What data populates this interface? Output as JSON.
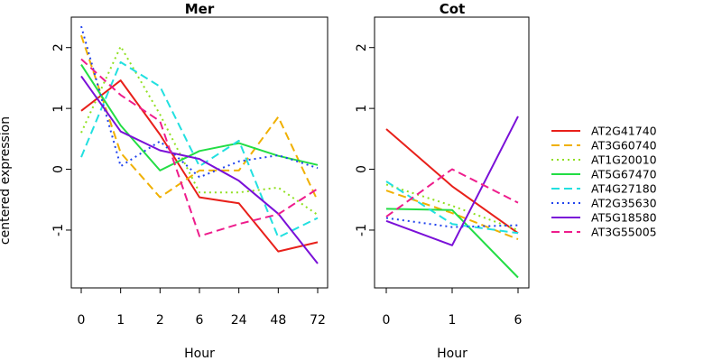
{
  "chart_data": [
    {
      "type": "line",
      "title": "Mer",
      "xlabel": "Hour",
      "ylabel": "centered expression",
      "categories": [
        "0",
        "1",
        "2",
        "6",
        "24",
        "48",
        "72"
      ],
      "ylim": [
        -1.95,
        2.5
      ],
      "yticks": [
        "-1",
        "0",
        "1",
        "2"
      ],
      "series": [
        {
          "name": "AT2G41740",
          "color": "#e8201a",
          "dash": "solid",
          "values": [
            0.96,
            1.46,
            0.57,
            -0.46,
            -0.56,
            -1.35,
            -1.2
          ]
        },
        {
          "name": "AT3G60740",
          "color": "#f0b000",
          "dash": "dashed",
          "values": [
            2.2,
            0.27,
            -0.46,
            -0.02,
            -0.02,
            0.86,
            -0.52
          ]
        },
        {
          "name": "AT1G20010",
          "color": "#90e020",
          "dash": "dotted",
          "values": [
            0.6,
            2.02,
            0.9,
            -0.38,
            -0.38,
            -0.3,
            -0.75
          ]
        },
        {
          "name": "AT5G67470",
          "color": "#22dd44",
          "dash": "solid",
          "values": [
            1.72,
            0.72,
            -0.02,
            0.3,
            0.43,
            0.22,
            0.07
          ]
        },
        {
          "name": "AT4G27180",
          "color": "#22e0e0",
          "dash": "dashed",
          "values": [
            0.2,
            1.76,
            1.36,
            0.05,
            0.47,
            -1.12,
            -0.8
          ]
        },
        {
          "name": "AT2G35630",
          "color": "#2244ee",
          "dash": "dotted",
          "values": [
            2.35,
            0.05,
            0.46,
            -0.13,
            0.13,
            0.23,
            0.02
          ]
        },
        {
          "name": "AT5G18580",
          "color": "#7a10d8",
          "dash": "solid",
          "values": [
            1.53,
            0.62,
            0.31,
            0.17,
            -0.19,
            -0.73,
            -1.55
          ]
        },
        {
          "name": "AT3G55005",
          "color": "#ee1c8c",
          "dash": "dashed",
          "values": [
            1.81,
            1.22,
            0.79,
            -1.1,
            -0.9,
            -0.74,
            -0.32
          ]
        }
      ]
    },
    {
      "type": "line",
      "title": "Cot",
      "xlabel": "Hour",
      "ylabel": "",
      "categories": [
        "0",
        "1",
        "6"
      ],
      "ylim": [
        -1.95,
        2.5
      ],
      "yticks": [
        "-1",
        "0",
        "1",
        "2"
      ],
      "series": [
        {
          "name": "AT2G41740",
          "color": "#e8201a",
          "dash": "solid",
          "values": [
            0.66,
            -0.28,
            -1.05
          ]
        },
        {
          "name": "AT3G60740",
          "color": "#f0b000",
          "dash": "dashed",
          "values": [
            -0.35,
            -0.72,
            -1.15
          ]
        },
        {
          "name": "AT1G20010",
          "color": "#90e020",
          "dash": "dotted",
          "values": [
            -0.25,
            -0.6,
            -1.0
          ]
        },
        {
          "name": "AT5G67470",
          "color": "#22dd44",
          "dash": "solid",
          "values": [
            -0.65,
            -0.67,
            -1.78
          ]
        },
        {
          "name": "AT4G27180",
          "color": "#22e0e0",
          "dash": "dashed",
          "values": [
            -0.2,
            -0.9,
            -1.05
          ]
        },
        {
          "name": "AT2G35630",
          "color": "#2244ee",
          "dash": "dotted",
          "values": [
            -0.8,
            -0.95,
            -0.92
          ]
        },
        {
          "name": "AT5G18580",
          "color": "#7a10d8",
          "dash": "solid",
          "values": [
            -0.85,
            -1.25,
            0.87
          ]
        },
        {
          "name": "AT3G55005",
          "color": "#ee1c8c",
          "dash": "dashed",
          "values": [
            -0.78,
            0.0,
            -0.55
          ]
        }
      ]
    }
  ],
  "legend": {
    "position": "right",
    "entries": [
      {
        "name": "AT2G41740",
        "color": "#e8201a",
        "dash": "solid"
      },
      {
        "name": "AT3G60740",
        "color": "#f0b000",
        "dash": "dashed"
      },
      {
        "name": "AT1G20010",
        "color": "#90e020",
        "dash": "dotted"
      },
      {
        "name": "AT5G67470",
        "color": "#22dd44",
        "dash": "solid"
      },
      {
        "name": "AT4G27180",
        "color": "#22e0e0",
        "dash": "dashed"
      },
      {
        "name": "AT2G35630",
        "color": "#2244ee",
        "dash": "dotted"
      },
      {
        "name": "AT5G18580",
        "color": "#7a10d8",
        "dash": "solid"
      },
      {
        "name": "AT3G55005",
        "color": "#ee1c8c",
        "dash": "dashed"
      }
    ]
  }
}
